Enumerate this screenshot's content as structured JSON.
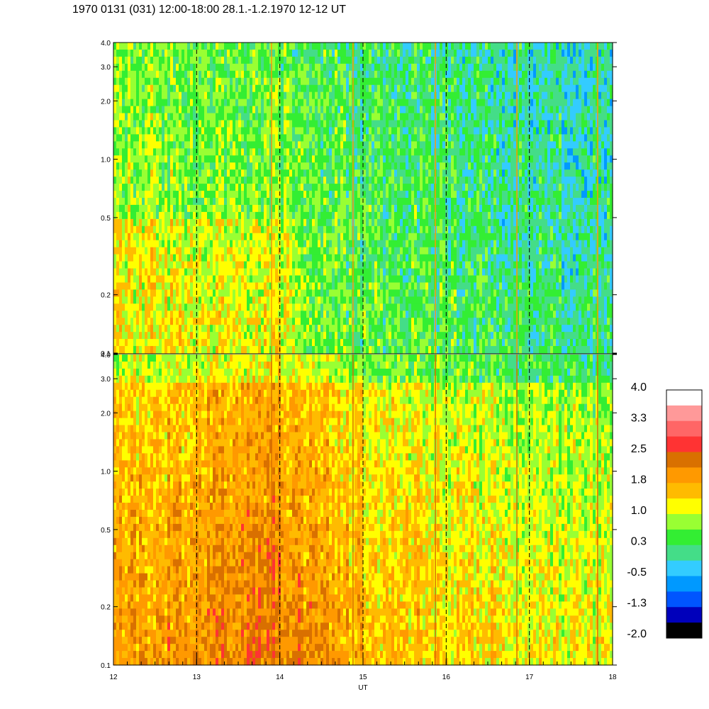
{
  "title": "1970 0131 (031) 12:00-18:00 28.1.-1.2.1970  12-12 UT",
  "chart_data": [
    {
      "type": "heatmap",
      "panel": "top",
      "x_range": [
        12,
        18
      ],
      "y_scale": "log",
      "y_range": [
        0.1,
        4.0
      ],
      "y_ticks": [
        "4.0",
        "3.0",
        "2.0",
        "1.0",
        "0.5",
        "0.2",
        "0.1"
      ],
      "dashed_gridlines_at": [
        13,
        14,
        15,
        16,
        17
      ],
      "dominant_levels": [
        "0.3",
        "1.0",
        "-0.5"
      ],
      "base_trend": [
        {
          "x": 12.0,
          "level": 0.8
        },
        {
          "x": 13.0,
          "level": 0.7
        },
        {
          "x": 14.0,
          "level": 0.6
        },
        {
          "x": 15.0,
          "level": 0.4
        },
        {
          "x": 16.0,
          "level": 0.3
        },
        {
          "x": 17.0,
          "level": 0.1
        },
        {
          "x": 18.0,
          "level": 0.0
        }
      ]
    },
    {
      "type": "heatmap",
      "panel": "bottom",
      "x_range": [
        12,
        18
      ],
      "y_scale": "log",
      "y_range": [
        0.1,
        4.0
      ],
      "y_ticks": [
        "4.0",
        "3.0",
        "2.0",
        "1.0",
        "0.5",
        "0.2",
        "0.1"
      ],
      "dashed_gridlines_at": [
        13,
        14,
        15,
        16,
        17
      ],
      "dominant_levels": [
        "1.8",
        "1.0",
        "2.5"
      ],
      "base_trend": [
        {
          "x": 12.0,
          "level": 1.9
        },
        {
          "x": 13.0,
          "level": 2.0
        },
        {
          "x": 13.8,
          "level": 2.3
        },
        {
          "x": 15.0,
          "level": 1.7
        },
        {
          "x": 16.0,
          "level": 1.5
        },
        {
          "x": 17.0,
          "level": 1.3
        },
        {
          "x": 18.0,
          "level": 1.2
        }
      ]
    }
  ],
  "x_axis": {
    "label": "UT",
    "ticks": [
      "12",
      "13",
      "14",
      "15",
      "16",
      "17",
      "18"
    ]
  },
  "colorbar": {
    "labels": [
      "4.0",
      "3.3",
      "2.5",
      "1.8",
      "1.0",
      "0.3",
      "-0.5",
      "-1.3",
      "-2.0"
    ],
    "colors": [
      "#ffffff",
      "#ff9999",
      "#ff6666",
      "#ff3333",
      "#d97000",
      "#ff9900",
      "#ffbb00",
      "#ffff00",
      "#99ff33",
      "#33ee33",
      "#44dd88",
      "#33ccff",
      "#0099ff",
      "#0055ff",
      "#0000bb",
      "#000000"
    ]
  }
}
